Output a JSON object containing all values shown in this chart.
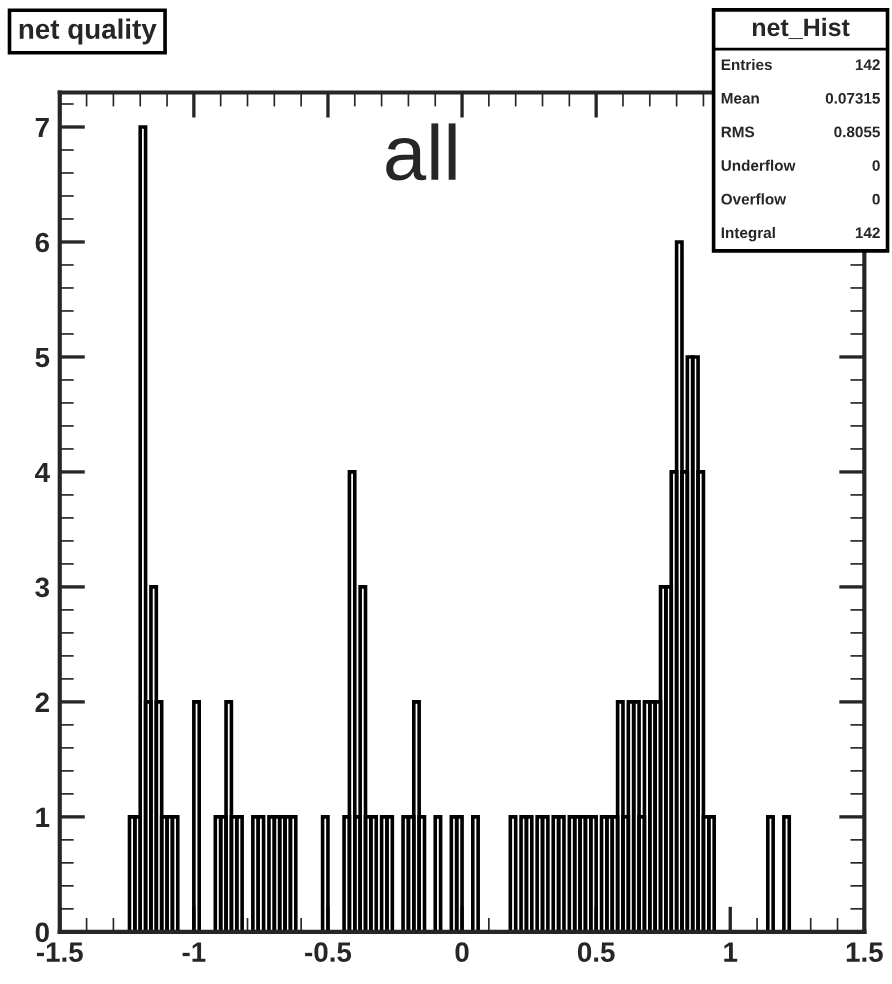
{
  "chart_data": {
    "type": "histogram",
    "title": "net quality",
    "color": "#000000",
    "bins": [
      -1.26,
      -1.24,
      -1.22,
      -1.2,
      -1.18,
      -1.16,
      -1.14,
      -1.12,
      -1.1,
      -1.08,
      -1.06,
      -1.04,
      -1.02,
      -1.0,
      -0.98,
      -0.96,
      -0.94,
      -0.92,
      -0.9,
      -0.88,
      -0.86,
      -0.84,
      -0.82,
      -0.8,
      -0.78,
      -0.76,
      -0.74,
      -0.72,
      -0.7,
      -0.68,
      -0.66,
      -0.64,
      -0.62,
      -0.6,
      -0.58,
      -0.56,
      -0.54,
      -0.52,
      -0.5,
      -0.48,
      -0.46,
      -0.44,
      -0.42,
      -0.4,
      -0.38,
      -0.36,
      -0.34,
      -0.32,
      -0.3,
      -0.28,
      -0.26,
      -0.24,
      -0.22,
      -0.2,
      -0.18,
      -0.16,
      -0.14,
      -0.12,
      -0.1,
      -0.08,
      -0.06,
      -0.04,
      -0.02,
      0.0,
      0.02,
      0.04,
      0.06,
      0.08,
      0.1,
      0.12,
      0.14,
      0.16,
      0.18,
      0.2,
      0.22,
      0.24,
      0.26,
      0.28,
      0.3,
      0.32,
      0.34,
      0.36,
      0.38,
      0.4,
      0.42,
      0.44,
      0.46,
      0.48,
      0.5,
      0.52,
      0.54,
      0.56,
      0.58,
      0.6,
      0.62,
      0.64,
      0.66,
      0.68,
      0.7,
      0.72,
      0.74,
      0.76,
      0.78,
      0.8,
      0.82,
      0.84,
      0.86,
      0.88,
      0.9,
      0.92,
      0.94,
      0.96,
      0.98,
      1.0,
      1.02,
      1.04,
      1.06,
      1.08,
      1.1,
      1.12,
      1.14,
      1.16,
      1.18,
      1.2,
      1.22
    ],
    "values": [
      0,
      1,
      1,
      7,
      2,
      3,
      2,
      1,
      1,
      1,
      0,
      0,
      0,
      2,
      0,
      0,
      0,
      1,
      1,
      2,
      1,
      1,
      0,
      0,
      1,
      1,
      0,
      1,
      1,
      1,
      1,
      1,
      0,
      0,
      0,
      0,
      0,
      1,
      0,
      0,
      0,
      1,
      4,
      1,
      3,
      1,
      1,
      0,
      1,
      1,
      0,
      0,
      1,
      1,
      2,
      1,
      0,
      0,
      1,
      0,
      0,
      1,
      1,
      0,
      0,
      1,
      0,
      0,
      0,
      0,
      0,
      0,
      1,
      0,
      1,
      1,
      0,
      1,
      1,
      0,
      1,
      1,
      0,
      1,
      1,
      1,
      1,
      1,
      0,
      1,
      1,
      1,
      2,
      1,
      2,
      2,
      1,
      2,
      2,
      2,
      3,
      3,
      4,
      6,
      4,
      5,
      5,
      4,
      1,
      1,
      0,
      0,
      0,
      0,
      0,
      0,
      0,
      0,
      0,
      0,
      1,
      0,
      0,
      1
    ],
    "xlim": [
      -1.5,
      1.5
    ],
    "ylim": [
      0,
      7.3
    ],
    "xticks": [
      -1.5,
      -1,
      -0.5,
      0,
      0.5,
      1,
      1.5
    ],
    "yticks": [
      0,
      1,
      2,
      3,
      4,
      5,
      6,
      7
    ],
    "grid": false,
    "legend": false,
    "annotations": [
      "all",
      "net_Hist",
      "Entries",
      "142",
      "Mean",
      "0.07315",
      "RMS",
      "0.8055",
      "Underflow",
      "0",
      "Overflow",
      "0",
      "Integral",
      "142"
    ]
  }
}
